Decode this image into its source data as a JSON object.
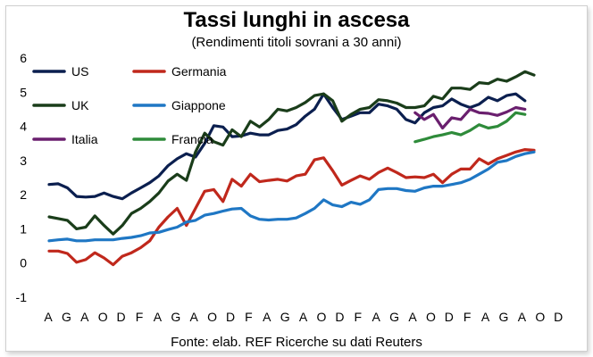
{
  "chart_data": {
    "type": "line",
    "title": "Tassi lunghi in ascesa",
    "subtitle": "(Rendimenti titoli sovrani a 30 anni)",
    "source": "Fonte: elab. REF Ricerche su dati Reuters",
    "ylim": [
      -1,
      6
    ],
    "yticks": [
      -1,
      0,
      1,
      2,
      3,
      4,
      5,
      6
    ],
    "x_tick_labels": [
      "A",
      "G",
      "A",
      "O",
      "D",
      "F",
      "A",
      "G",
      "A",
      "O",
      "D",
      "F",
      "A",
      "G",
      "A",
      "O",
      "D",
      "F",
      "A",
      "G",
      "A",
      "O",
      "D",
      "F",
      "A",
      "G",
      "A",
      "O",
      "D"
    ],
    "grid": false,
    "legend_position": "top-left",
    "series": [
      {
        "name": "US",
        "color": "#0b1f4f",
        "values": [
          2.3,
          2.32,
          2.2,
          1.95,
          1.93,
          1.95,
          2.05,
          1.95,
          1.88,
          2.05,
          2.2,
          2.35,
          2.55,
          2.85,
          3.05,
          3.2,
          3.1,
          3.5,
          4.02,
          3.98,
          3.7,
          3.72,
          3.8,
          3.75,
          3.75,
          3.88,
          3.92,
          4.05,
          4.3,
          4.5,
          4.95,
          4.55,
          4.2,
          4.3,
          4.4,
          4.4,
          4.65,
          4.6,
          4.5,
          4.2,
          4.1,
          4.4,
          4.55,
          4.6,
          4.8,
          4.65,
          4.55,
          4.65,
          4.85,
          4.75,
          4.9,
          4.95,
          4.75
        ]
      },
      {
        "name": "Germania",
        "color": "#c0281c",
        "values": [
          0.35,
          0.35,
          0.28,
          0.02,
          0.1,
          0.3,
          0.15,
          -0.05,
          0.2,
          0.3,
          0.45,
          0.65,
          1.05,
          1.35,
          1.6,
          1.1,
          1.6,
          2.1,
          2.15,
          1.8,
          2.45,
          2.25,
          2.6,
          2.38,
          2.42,
          2.45,
          2.4,
          2.55,
          2.6,
          3.02,
          3.08,
          2.7,
          2.28,
          2.42,
          2.55,
          2.45,
          2.65,
          2.78,
          2.65,
          2.5,
          2.52,
          2.5,
          2.6,
          2.35,
          2.6,
          2.75,
          2.75,
          3.05,
          2.9,
          3.05,
          3.15,
          3.25,
          3.32,
          3.3
        ]
      },
      {
        "name": "UK",
        "color": "#1a3d1a",
        "values": [
          1.35,
          1.3,
          1.25,
          1.0,
          1.05,
          1.38,
          1.1,
          0.85,
          1.1,
          1.45,
          1.6,
          1.8,
          2.05,
          2.4,
          2.6,
          2.42,
          3.25,
          3.8,
          3.55,
          3.45,
          3.9,
          3.7,
          4.15,
          3.98,
          4.2,
          4.5,
          4.45,
          4.55,
          4.7,
          4.9,
          4.95,
          4.75,
          4.15,
          4.35,
          4.5,
          4.55,
          4.78,
          4.75,
          4.68,
          4.55,
          4.55,
          4.6,
          4.88,
          4.8,
          5.12,
          5.12,
          5.08,
          5.28,
          5.25,
          5.38,
          5.32,
          5.45,
          5.6,
          5.5
        ]
      },
      {
        "name": "Giappone",
        "color": "#1f77c4",
        "values": [
          0.65,
          0.68,
          0.7,
          0.65,
          0.65,
          0.68,
          0.68,
          0.68,
          0.72,
          0.75,
          0.8,
          0.88,
          0.9,
          0.98,
          1.05,
          1.2,
          1.25,
          1.4,
          1.45,
          1.52,
          1.58,
          1.6,
          1.38,
          1.28,
          1.26,
          1.28,
          1.28,
          1.32,
          1.45,
          1.6,
          1.85,
          1.7,
          1.65,
          1.78,
          1.72,
          1.85,
          2.15,
          2.18,
          2.18,
          2.12,
          2.1,
          2.2,
          2.25,
          2.25,
          2.3,
          2.35,
          2.45,
          2.6,
          2.75,
          2.95,
          3.0,
          3.12,
          3.2,
          3.25
        ]
      },
      {
        "name": "Italia",
        "color": "#6a1f6e",
        "start_index": 40,
        "values": [
          4.4,
          4.2,
          4.35,
          3.95,
          4.25,
          4.2,
          4.5,
          4.4,
          4.38,
          4.32,
          4.42,
          4.55,
          4.5
        ]
      },
      {
        "name": "Francia",
        "color": "#2e8b3a",
        "start_index": 40,
        "values": [
          3.55,
          3.62,
          3.7,
          3.75,
          3.82,
          3.75,
          3.88,
          4.05,
          3.95,
          4.0,
          4.15,
          4.4,
          4.35
        ]
      }
    ]
  }
}
